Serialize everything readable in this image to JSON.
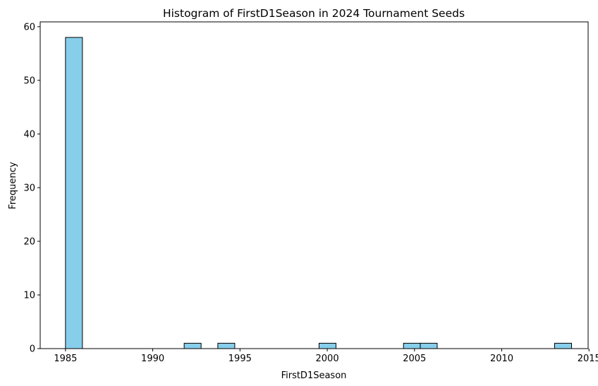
{
  "chart_data": {
    "type": "bar",
    "title": "Histogram of FirstD1Season in 2024 Tournament Seeds",
    "xlabel": "FirstD1Season",
    "ylabel": "Frequency",
    "xlim": [
      1983.55,
      2014.95
    ],
    "ylim": [
      0,
      60.9
    ],
    "x_ticks": [
      1985,
      1990,
      1995,
      2000,
      2005,
      2010,
      2015
    ],
    "y_ticks": [
      0,
      10,
      20,
      30,
      40,
      50,
      60
    ],
    "bins": [
      {
        "start": 1985.0,
        "end": 1985.97,
        "count": 58
      },
      {
        "start": 1991.8,
        "end": 1992.77,
        "count": 1
      },
      {
        "start": 1993.73,
        "end": 1994.7,
        "count": 1
      },
      {
        "start": 1999.53,
        "end": 2000.5,
        "count": 1
      },
      {
        "start": 2004.37,
        "end": 2005.33,
        "count": 1
      },
      {
        "start": 2005.33,
        "end": 2006.3,
        "count": 1
      },
      {
        "start": 2013.03,
        "end": 2014.0,
        "count": 1
      }
    ],
    "bar_color": "#87ceeb",
    "edge_color": "#000000",
    "grid": false,
    "legend": "none"
  }
}
